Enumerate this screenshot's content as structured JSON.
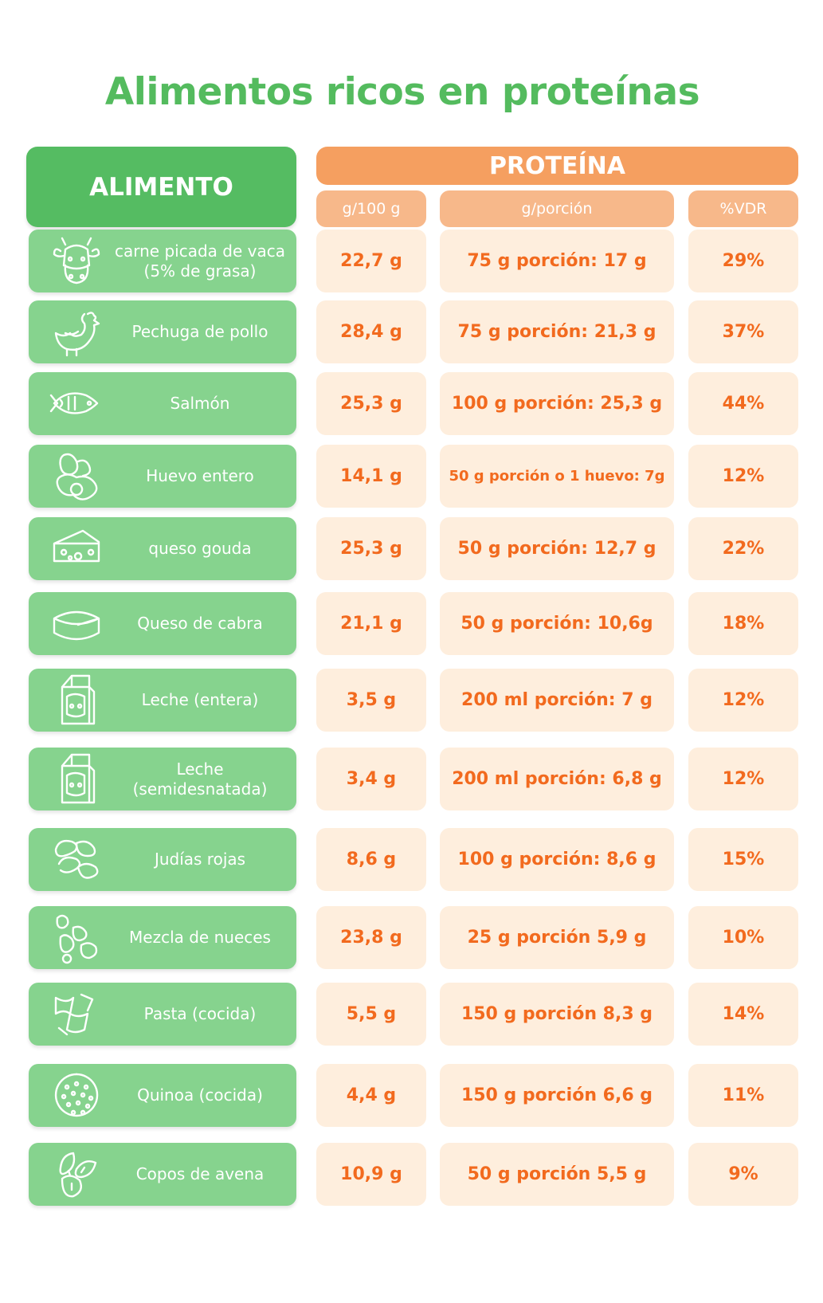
{
  "title": "Alimentos ricos en proteínas",
  "header": {
    "food": "ALIMENTO",
    "protein": "PROTEÍNA",
    "sub": [
      "g/100 g",
      "g/porción",
      "%VDR"
    ]
  },
  "colors": {
    "title_green": "#54bb5e",
    "header_green": "#55bc62",
    "row_green": "#86d38e",
    "header_orange": "#f59f60",
    "sub_orange": "#f7b88a",
    "cell_bg": "#feeedd",
    "value_orange": "#f26a1e"
  },
  "rows": [
    {
      "icon": "cow-icon",
      "food": "carne picada de vaca\n(5% de grasa)",
      "per100": "22,7 g",
      "portion": "75 g porción: 17 g",
      "vdr": "29%"
    },
    {
      "icon": "chicken-icon",
      "food": "Pechuga de pollo",
      "per100": "28,4 g",
      "portion": "75 g porción: 21,3 g",
      "vdr": "37%"
    },
    {
      "icon": "fish-icon",
      "food": "Salmón",
      "per100": "25,3 g",
      "portion": "100 g porción: 25,3 g",
      "vdr": "44%"
    },
    {
      "icon": "egg-icon",
      "food": "Huevo entero",
      "per100": "14,1 g",
      "portion": "50 g porción o 1 huevo: 7g",
      "vdr": "12%"
    },
    {
      "icon": "cheese-icon",
      "food": "queso gouda",
      "per100": "25,3 g",
      "portion": "50 g porción: 12,7 g",
      "vdr": "22%"
    },
    {
      "icon": "goat-cheese-icon",
      "food": "Queso de cabra",
      "per100": "21,1 g",
      "portion": "50 g porción: 10,6g",
      "vdr": "18%"
    },
    {
      "icon": "milk-carton-icon",
      "food": "Leche (entera)",
      "per100": "3,5 g",
      "portion": "200 ml porción: 7 g",
      "vdr": "12%"
    },
    {
      "icon": "milk-carton-icon",
      "food": "Leche\n(semidesnatada)",
      "per100": "3,4 g",
      "portion": "200 ml porción: 6,8 g",
      "vdr": "12%"
    },
    {
      "icon": "beans-icon",
      "food": "Judías rojas",
      "per100": "8,6 g",
      "portion": "100 g porción: 8,6 g",
      "vdr": "15%"
    },
    {
      "icon": "nuts-icon",
      "food": "Mezcla de nueces",
      "per100": "23,8 g",
      "portion": "25 g porción 5,9 g",
      "vdr": "10%"
    },
    {
      "icon": "pasta-icon",
      "food": "Pasta (cocida)",
      "per100": "5,5 g",
      "portion": "150 g porción 8,3 g",
      "vdr": "14%"
    },
    {
      "icon": "quinoa-icon",
      "food": "Quinoa (cocida)",
      "per100": "4,4 g",
      "portion": "150 g porción 6,6 g",
      "vdr": "11%"
    },
    {
      "icon": "oats-icon",
      "food": "Copos de avena",
      "per100": "10,9 g",
      "portion": "50 g porción 5,5 g",
      "vdr": "9%"
    }
  ]
}
